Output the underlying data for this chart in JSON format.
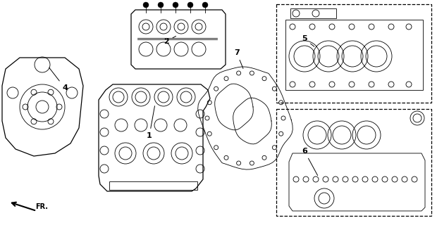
{
  "bg_color": "#ffffff",
  "line_color": "#000000",
  "labels": [
    "1",
    "2",
    "4",
    "5",
    "6",
    "7"
  ]
}
